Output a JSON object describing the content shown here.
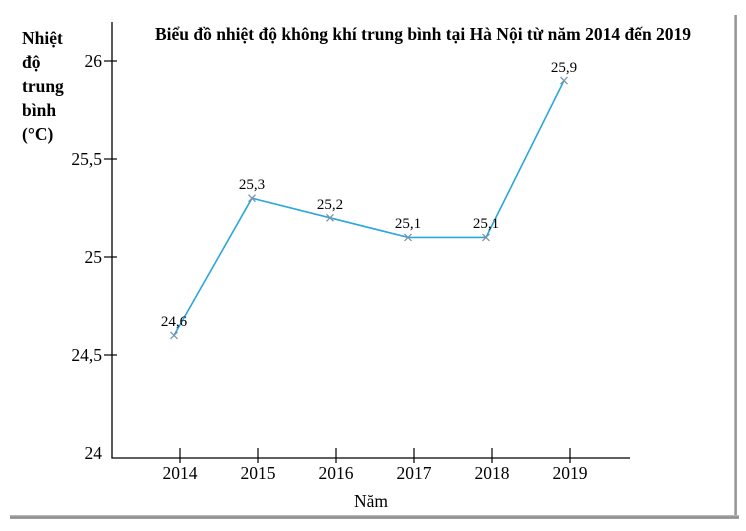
{
  "labels": {
    "title": "Biểu đồ nhiệt độ không khí trung bình tại Hà Nội từ năm 2014 đến 2019",
    "y_axis_lines": [
      "Nhiệt",
      "độ",
      "trung",
      "bình",
      "(°C)"
    ],
    "x_axis_label": "Năm"
  },
  "chart_data": {
    "type": "line",
    "title": "Biểu đồ nhiệt độ không khí trung bình tại Hà Nội từ năm 2014 đến 2019",
    "xlabel": "Năm",
    "ylabel": "Nhiệt độ trung bình (°C)",
    "x": [
      2014,
      2015,
      2016,
      2017,
      2018,
      2019
    ],
    "x_tick_labels": [
      "2014",
      "2015",
      "2016",
      "2017",
      "2018",
      "2019"
    ],
    "series": [
      {
        "name": "Nhiệt độ trung bình (°C)",
        "values": [
          24.6,
          25.3,
          25.2,
          25.1,
          25.1,
          25.9
        ]
      }
    ],
    "point_labels": [
      "24,6",
      "25,3",
      "25,2",
      "25,1",
      "25,1",
      "25,9"
    ],
    "y_ticks": [
      24,
      24.5,
      25,
      25.5,
      26
    ],
    "y_tick_labels": [
      "24",
      "24,5",
      "25",
      "25,5",
      "26"
    ],
    "ylim": [
      24,
      26
    ],
    "grid": false,
    "legend": null,
    "marker": "x",
    "decimal_separator": ",",
    "line_color": "#2BA6DB",
    "marker_color": "#7b95a6",
    "axis_color": "#000000"
  }
}
